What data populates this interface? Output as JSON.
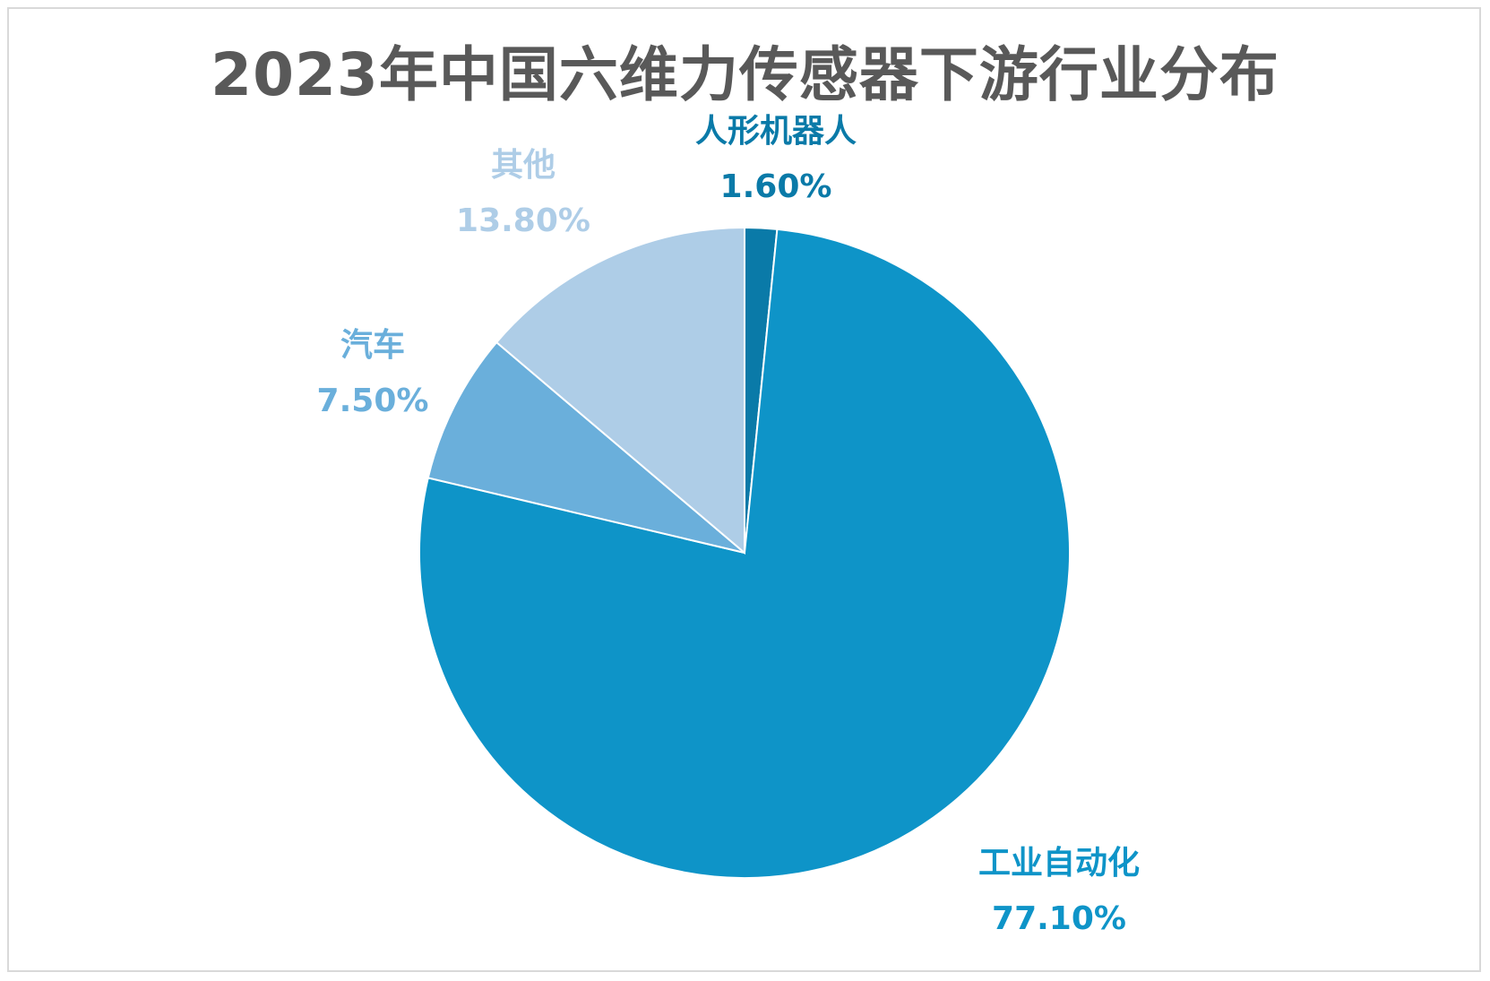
{
  "chart_data": {
    "type": "pie",
    "title": "2023年中国六维力传感器下游行业分布",
    "categories": [
      "人形机器人",
      "工业自动化",
      "汽车",
      "其他"
    ],
    "values": [
      1.6,
      77.1,
      7.5,
      13.8
    ],
    "value_labels": [
      "1.60%",
      "77.10%",
      "7.50%",
      "13.80%"
    ],
    "colors": [
      "#0a7aa8",
      "#0e94c8",
      "#6aafdb",
      "#aecde7"
    ],
    "start": "12 o'clock",
    "direction": "clockwise",
    "legend": "none",
    "labels": "outside, category and percentage"
  }
}
